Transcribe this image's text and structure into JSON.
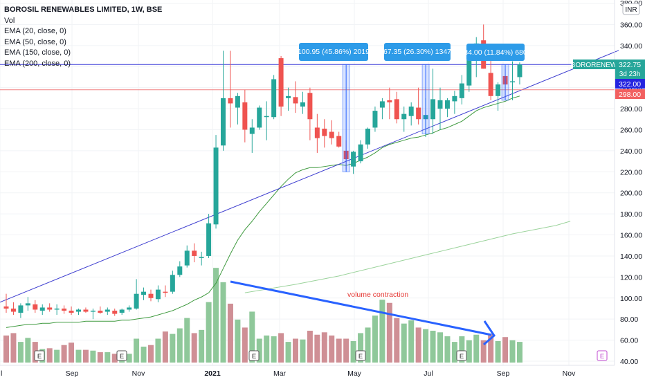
{
  "legend": {
    "title": "BOROSIL RENEWABLES LIMITED, 1W, BSE",
    "lines": [
      "Vol",
      "EMA (20, close, 0)",
      "EMA (50, close, 0)",
      "EMA (150, close, 0)",
      "EMA (200, close, 0)"
    ]
  },
  "currency_badge": "INR",
  "annotations": {
    "measure_labels": [
      "100.95 (45.86%) 2019",
      "67.35 (26.30%) 1347",
      "34.00 (11.84%) 680"
    ],
    "volume_note": "volume contraction",
    "earnings_marker": "E"
  },
  "price_tags": {
    "symbol": "BORORENEW",
    "last": "322.75",
    "countdown": "3d 23h",
    "blue_level": "322.00",
    "red_level": "298.00"
  },
  "colors": {
    "up": "#26a69a",
    "down": "#ef5350",
    "vol_up": "#8fc89a",
    "vol_down": "#cf8f95",
    "ema_line": "#4caf50",
    "trend_line": "#3f3fd0",
    "blue_hline": "#3a3ad8",
    "red_hline": "#f08080",
    "callout": "#2d9be8",
    "arrow": "#2962ff",
    "note": "#e53935"
  },
  "chart_data": {
    "type": "candlestick",
    "title": "BOROSIL RENEWABLES LIMITED, 1W, BSE",
    "y_axis": {
      "min": 40,
      "max": 380,
      "ticks": [
        40,
        60,
        80,
        100,
        120,
        140,
        160,
        180,
        200,
        220,
        240,
        260,
        280,
        300,
        320,
        340,
        360,
        380
      ],
      "tick_labels": [
        "40.00",
        "60.00",
        "80.00",
        "100.00",
        "120.00",
        "140.00",
        "160.00",
        "180.00",
        "200.00",
        "220.00",
        "240.00",
        "260.00",
        "280.00",
        "300.00",
        "320.00",
        "340.00",
        "360.00",
        "380.00"
      ]
    },
    "x_axis": {
      "tick_labels": [
        "l",
        "Sep",
        "Nov",
        "2021",
        "Mar",
        "May",
        "Jul",
        "Sep",
        "Nov"
      ]
    },
    "candles": [
      {
        "o": 92,
        "h": 104,
        "l": 86,
        "c": 90
      },
      {
        "o": 90,
        "h": 96,
        "l": 84,
        "c": 87
      },
      {
        "o": 86,
        "h": 95,
        "l": 81,
        "c": 93
      },
      {
        "o": 93,
        "h": 101,
        "l": 88,
        "c": 95
      },
      {
        "o": 94,
        "h": 98,
        "l": 86,
        "c": 89
      },
      {
        "o": 88,
        "h": 94,
        "l": 84,
        "c": 91
      },
      {
        "o": 91,
        "h": 95,
        "l": 87,
        "c": 89
      },
      {
        "o": 89,
        "h": 94,
        "l": 84,
        "c": 90
      },
      {
        "o": 90,
        "h": 93,
        "l": 85,
        "c": 88
      },
      {
        "o": 88,
        "h": 92,
        "l": 84,
        "c": 86
      },
      {
        "o": 87,
        "h": 90,
        "l": 84,
        "c": 89
      },
      {
        "o": 89,
        "h": 91,
        "l": 86,
        "c": 87
      },
      {
        "o": 87,
        "h": 90,
        "l": 80,
        "c": 88
      },
      {
        "o": 88,
        "h": 92,
        "l": 85,
        "c": 86
      },
      {
        "o": 87,
        "h": 91,
        "l": 84,
        "c": 89
      },
      {
        "o": 88,
        "h": 90,
        "l": 83,
        "c": 85
      },
      {
        "o": 86,
        "h": 90,
        "l": 84,
        "c": 89
      },
      {
        "o": 89,
        "h": 93,
        "l": 87,
        "c": 91
      },
      {
        "o": 90,
        "h": 118,
        "l": 89,
        "c": 104
      },
      {
        "o": 103,
        "h": 110,
        "l": 98,
        "c": 106
      },
      {
        "o": 104,
        "h": 108,
        "l": 97,
        "c": 100
      },
      {
        "o": 99,
        "h": 112,
        "l": 96,
        "c": 108
      },
      {
        "o": 106,
        "h": 112,
        "l": 101,
        "c": 105
      },
      {
        "o": 106,
        "h": 126,
        "l": 104,
        "c": 122
      },
      {
        "o": 122,
        "h": 135,
        "l": 120,
        "c": 130
      },
      {
        "o": 131,
        "h": 150,
        "l": 129,
        "c": 145
      },
      {
        "o": 145,
        "h": 152,
        "l": 134,
        "c": 140
      },
      {
        "o": 138,
        "h": 144,
        "l": 131,
        "c": 139
      },
      {
        "o": 140,
        "h": 180,
        "l": 138,
        "c": 171
      },
      {
        "o": 170,
        "h": 255,
        "l": 166,
        "c": 243
      },
      {
        "o": 245,
        "h": 335,
        "l": 240,
        "c": 290
      },
      {
        "o": 290,
        "h": 335,
        "l": 262,
        "c": 285
      },
      {
        "o": 281,
        "h": 295,
        "l": 265,
        "c": 292
      },
      {
        "o": 286,
        "h": 298,
        "l": 248,
        "c": 260
      },
      {
        "o": 256,
        "h": 270,
        "l": 238,
        "c": 262
      },
      {
        "o": 262,
        "h": 283,
        "l": 260,
        "c": 281
      },
      {
        "o": 272,
        "h": 287,
        "l": 250,
        "c": 273
      },
      {
        "o": 272,
        "h": 312,
        "l": 270,
        "c": 308
      },
      {
        "o": 328,
        "h": 330,
        "l": 273,
        "c": 282
      },
      {
        "o": 290,
        "h": 300,
        "l": 278,
        "c": 292
      },
      {
        "o": 291,
        "h": 306,
        "l": 276,
        "c": 285
      },
      {
        "o": 282,
        "h": 296,
        "l": 275,
        "c": 286
      },
      {
        "o": 295,
        "h": 300,
        "l": 250,
        "c": 270
      },
      {
        "o": 262,
        "h": 275,
        "l": 238,
        "c": 252
      },
      {
        "o": 261,
        "h": 270,
        "l": 243,
        "c": 254
      },
      {
        "o": 258,
        "h": 269,
        "l": 246,
        "c": 252
      },
      {
        "o": 254,
        "h": 258,
        "l": 243,
        "c": 244
      },
      {
        "o": 240,
        "h": 250,
        "l": 222,
        "c": 232
      },
      {
        "o": 225,
        "h": 240,
        "l": 218,
        "c": 239
      },
      {
        "o": 230,
        "h": 250,
        "l": 228,
        "c": 246
      },
      {
        "o": 246,
        "h": 262,
        "l": 242,
        "c": 261
      },
      {
        "o": 262,
        "h": 282,
        "l": 258,
        "c": 278
      },
      {
        "o": 281,
        "h": 290,
        "l": 270,
        "c": 287
      },
      {
        "o": 288,
        "h": 300,
        "l": 270,
        "c": 286
      },
      {
        "o": 289,
        "h": 296,
        "l": 266,
        "c": 270
      },
      {
        "o": 270,
        "h": 282,
        "l": 258,
        "c": 275
      },
      {
        "o": 273,
        "h": 286,
        "l": 264,
        "c": 282
      },
      {
        "o": 281,
        "h": 300,
        "l": 265,
        "c": 270
      },
      {
        "o": 270,
        "h": 290,
        "l": 253,
        "c": 274
      },
      {
        "o": 270,
        "h": 318,
        "l": 256,
        "c": 289
      },
      {
        "o": 280,
        "h": 300,
        "l": 260,
        "c": 288
      },
      {
        "o": 280,
        "h": 290,
        "l": 272,
        "c": 288
      },
      {
        "o": 287,
        "h": 297,
        "l": 275,
        "c": 292
      },
      {
        "o": 290,
        "h": 312,
        "l": 284,
        "c": 304
      },
      {
        "o": 302,
        "h": 330,
        "l": 296,
        "c": 330
      },
      {
        "o": 330,
        "h": 348,
        "l": 310,
        "c": 342
      },
      {
        "o": 345,
        "h": 360,
        "l": 318,
        "c": 318
      },
      {
        "o": 314,
        "h": 340,
        "l": 288,
        "c": 292
      },
      {
        "o": 292,
        "h": 305,
        "l": 278,
        "c": 303
      },
      {
        "o": 311,
        "h": 318,
        "l": 290,
        "c": 303
      },
      {
        "o": 305,
        "h": 325,
        "l": 288,
        "c": 306
      },
      {
        "o": 310,
        "h": 324,
        "l": 303,
        "c": 322
      }
    ],
    "volume": [
      [
        34,
        1
      ],
      [
        37,
        1
      ],
      [
        26,
        1
      ],
      [
        31,
        1
      ],
      [
        26,
        1
      ],
      [
        17,
        1
      ],
      [
        18,
        1
      ],
      [
        16,
        1
      ],
      [
        22,
        1
      ],
      [
        25,
        1
      ],
      [
        16,
        1
      ],
      [
        16,
        1
      ],
      [
        15,
        1
      ],
      [
        13,
        1
      ],
      [
        13,
        1
      ],
      [
        11,
        1
      ],
      [
        12,
        1
      ],
      [
        11,
        1
      ],
      [
        30,
        1
      ],
      [
        20,
        1
      ],
      [
        22,
        1
      ],
      [
        30,
        1
      ],
      [
        39,
        1
      ],
      [
        36,
        1
      ],
      [
        43,
        1
      ],
      [
        56,
        1
      ],
      [
        37,
        1
      ],
      [
        41,
        1
      ],
      [
        76,
        1
      ],
      [
        119,
        1
      ],
      [
        101,
        1
      ],
      [
        74,
        1
      ],
      [
        54,
        1
      ],
      [
        44,
        1
      ],
      [
        64,
        1
      ],
      [
        30,
        1
      ],
      [
        34,
        1
      ],
      [
        33,
        1
      ],
      [
        37,
        1
      ],
      [
        26,
        1
      ],
      [
        30,
        1
      ],
      [
        29,
        1
      ],
      [
        40,
        1
      ],
      [
        35,
        1
      ],
      [
        38,
        1
      ],
      [
        34,
        1
      ],
      [
        30,
        1
      ],
      [
        30,
        1
      ],
      [
        27,
        1
      ],
      [
        37,
        1
      ],
      [
        44,
        1
      ],
      [
        59,
        1
      ],
      [
        79,
        1
      ],
      [
        75,
        1
      ],
      [
        56,
        1
      ],
      [
        49,
        1
      ],
      [
        53,
        1
      ],
      [
        44,
        1
      ],
      [
        42,
        1
      ],
      [
        40,
        1
      ],
      [
        38,
        1
      ],
      [
        33,
        1
      ],
      [
        26,
        1
      ],
      [
        33,
        1
      ],
      [
        28,
        1
      ],
      [
        35,
        1
      ],
      [
        28,
        1
      ],
      [
        36,
        1
      ],
      [
        27,
        1
      ],
      [
        32,
        1
      ],
      [
        28,
        1
      ],
      [
        26,
        1
      ]
    ],
    "vol_y_axis": {
      "min": 0,
      "max": 120
    },
    "ema20": [
      72,
      73,
      74,
      75,
      75,
      76,
      76,
      77,
      77,
      77,
      77,
      78,
      78,
      78,
      78,
      78,
      79,
      79,
      80,
      81,
      82,
      84,
      86,
      88,
      91,
      94,
      98,
      101,
      105,
      114,
      128,
      142,
      155,
      165,
      173,
      182,
      190,
      198,
      206,
      213,
      219,
      222,
      224,
      224,
      225,
      226,
      227,
      226,
      228,
      231,
      234,
      238,
      243,
      246,
      248,
      250,
      252,
      253,
      255,
      257,
      260,
      262,
      265,
      268,
      273,
      278,
      281,
      283,
      285,
      287,
      290,
      292
    ],
    "ema50": [
      [
        33,
        105
      ],
      [
        40,
        113
      ],
      [
        46,
        121
      ],
      [
        52,
        131
      ],
      [
        58,
        141
      ],
      [
        64,
        151
      ],
      [
        70,
        161
      ],
      [
        76,
        169
      ],
      [
        78,
        173
      ]
    ],
    "trendline": [
      [
        0,
        96
      ],
      [
        70,
        320
      ],
      [
        78,
        342
      ]
    ],
    "blue_level": 322,
    "red_level": 298
  }
}
